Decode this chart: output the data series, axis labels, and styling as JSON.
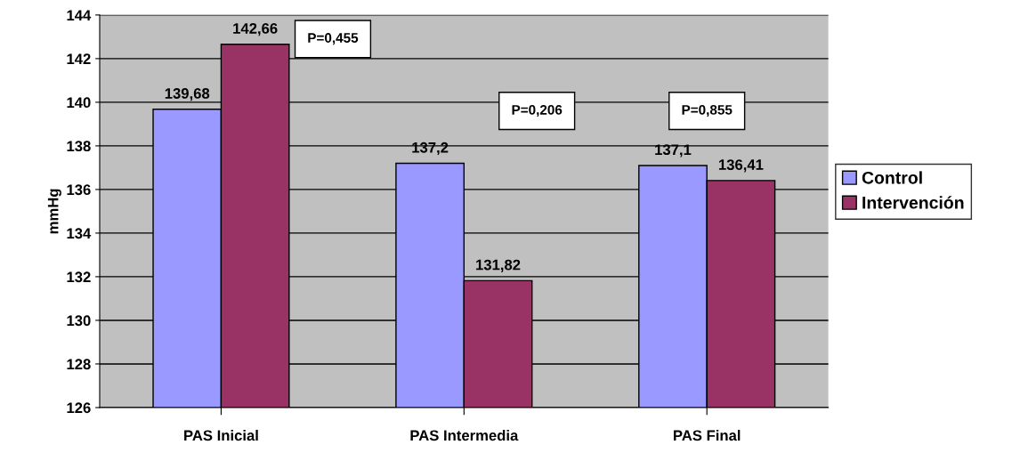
{
  "chart_data": {
    "type": "bar",
    "ylabel": "mmHg",
    "categories": [
      "PAS Inicial",
      "PAS Intermedia",
      "PAS Final"
    ],
    "series": [
      {
        "name": "Control",
        "color": "#9999ff",
        "values": [
          139.68,
          137.2,
          137.1
        ],
        "value_labels": [
          "139,68",
          "137,2",
          "137,1"
        ]
      },
      {
        "name": "Intervención",
        "color": "#993366",
        "values": [
          142.66,
          131.82,
          136.41
        ],
        "value_labels": [
          "142,66",
          "131,82",
          "136,41"
        ]
      }
    ],
    "ylim": [
      126,
      144
    ],
    "yticks": [
      126,
      128,
      130,
      132,
      134,
      136,
      138,
      140,
      142,
      144
    ],
    "grid": "y",
    "legend": "right",
    "annotations": [
      "P=0,455",
      "P=0,206",
      "P=0,855"
    ]
  }
}
